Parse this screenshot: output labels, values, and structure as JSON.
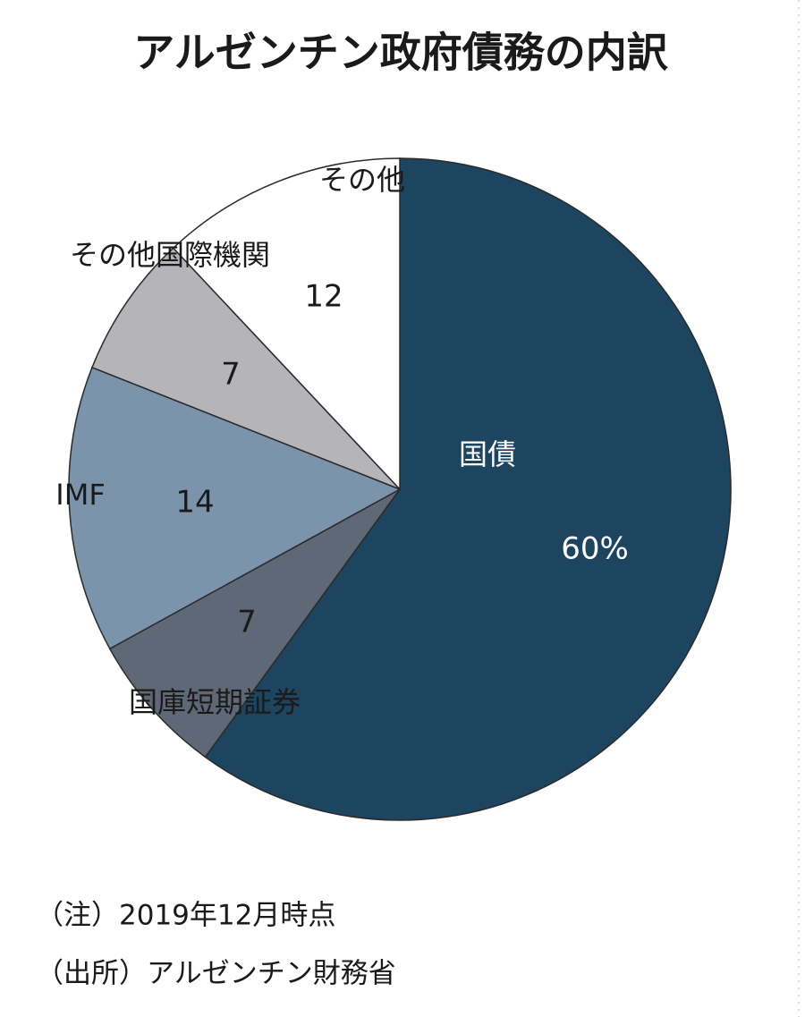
{
  "chart_data": {
    "type": "pie",
    "title": "アルゼンチン政府債務の内訳",
    "categories": [
      "国債",
      "国庫短期証券",
      "IMF",
      "その他国際機関",
      "その他"
    ],
    "values": [
      60,
      7,
      14,
      7,
      12
    ],
    "value_labels": [
      "60%",
      "7",
      "14",
      "7",
      "12"
    ],
    "colors": [
      "#1e4560",
      "#5f6877",
      "#7b94ac",
      "#b5b4b9",
      "#ffffff"
    ],
    "notes": [
      "（注）2019年12月時点",
      "（出所）アルゼンチン財務省"
    ]
  }
}
